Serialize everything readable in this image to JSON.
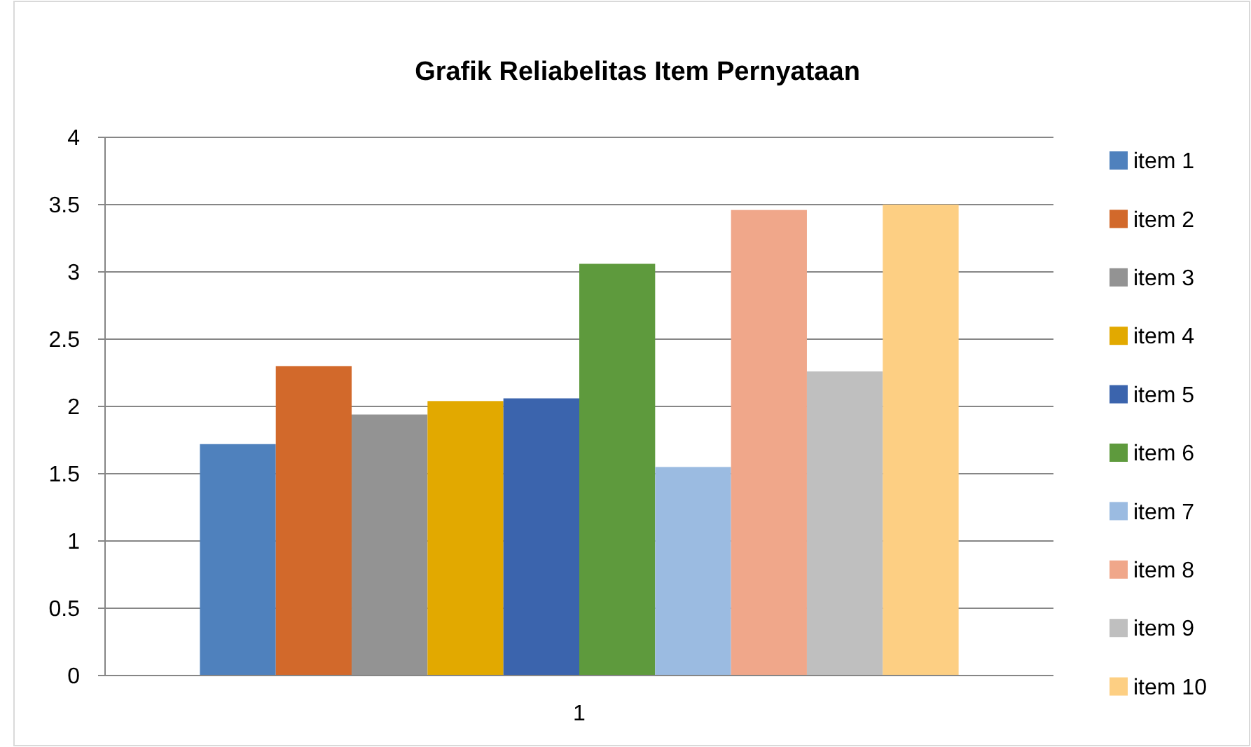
{
  "chart_data": {
    "type": "bar",
    "title": "Grafik Reliabelitas Item Pernyataan",
    "categories": [
      "1"
    ],
    "series": [
      {
        "name": "item 1",
        "color": "#4f81bd",
        "values": [
          1.72
        ]
      },
      {
        "name": "item 2",
        "color": "#d2692b",
        "values": [
          2.3
        ]
      },
      {
        "name": "item 3",
        "color": "#939393",
        "values": [
          1.94
        ]
      },
      {
        "name": "item 4",
        "color": "#e2a900",
        "values": [
          2.04
        ]
      },
      {
        "name": "item 5",
        "color": "#3b64ad",
        "values": [
          2.06
        ]
      },
      {
        "name": "item 6",
        "color": "#5e9a3d",
        "values": [
          3.06
        ]
      },
      {
        "name": "item 7",
        "color": "#9bbbe1",
        "values": [
          1.55
        ]
      },
      {
        "name": "item 8",
        "color": "#f0a78a",
        "values": [
          3.46
        ]
      },
      {
        "name": "item 9",
        "color": "#bfbfbf",
        "values": [
          2.26
        ]
      },
      {
        "name": "item 10",
        "color": "#fdcf83",
        "values": [
          3.5
        ]
      }
    ],
    "ylim": [
      0,
      4
    ],
    "yticks": [
      0,
      0.5,
      1,
      1.5,
      2,
      2.5,
      3,
      3.5,
      4
    ],
    "grid": "y",
    "legend": "right"
  }
}
